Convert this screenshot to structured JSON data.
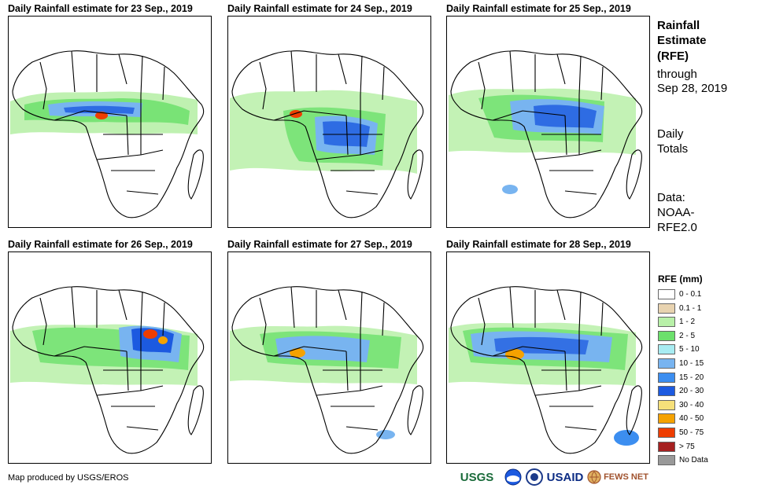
{
  "panels": [
    {
      "title": "Daily Rainfall estimate for 23 Sep., 2019"
    },
    {
      "title": "Daily Rainfall estimate for 24 Sep., 2019"
    },
    {
      "title": "Daily Rainfall estimate for 25 Sep., 2019"
    },
    {
      "title": "Daily Rainfall estimate for 26 Sep., 2019"
    },
    {
      "title": "Daily Rainfall estimate for 27 Sep., 2019"
    },
    {
      "title": "Daily Rainfall estimate for 28 Sep., 2019"
    }
  ],
  "side": {
    "title_line1": "Rainfall",
    "title_line2": "Estimate",
    "title_line3": "(RFE)",
    "through": "through",
    "date": "Sep 28, 2019",
    "daily1": "Daily",
    "daily2": "Totals",
    "data1": "Data:",
    "data2": "NOAA-",
    "data3": "RFE2.0"
  },
  "legend": {
    "title": "RFE (mm)",
    "items": [
      {
        "label": "0 - 0.1",
        "color": "#ffffff"
      },
      {
        "label": "0.1 - 1",
        "color": "#e8d3b0"
      },
      {
        "label": "1 - 2",
        "color": "#b8f0a8"
      },
      {
        "label": "2 - 5",
        "color": "#6ce06c"
      },
      {
        "label": "5 - 10",
        "color": "#a8ecf2"
      },
      {
        "label": "10 - 15",
        "color": "#78b4f0"
      },
      {
        "label": "15 - 20",
        "color": "#3c8ef0"
      },
      {
        "label": "20 - 30",
        "color": "#1c5ae0"
      },
      {
        "label": "30 - 40",
        "color": "#f6e07a"
      },
      {
        "label": "40 - 50",
        "color": "#f5a200"
      },
      {
        "label": "50 - 75",
        "color": "#ee3d00"
      },
      {
        "label": "> 75",
        "color": "#a52020"
      },
      {
        "label": "No Data",
        "color": "#999999"
      }
    ]
  },
  "footer": {
    "credit": "Map produced by USGS/EROS",
    "logos": {
      "usgs": "USGS",
      "usaid": "USAID",
      "fews": "FEWS NET"
    }
  }
}
